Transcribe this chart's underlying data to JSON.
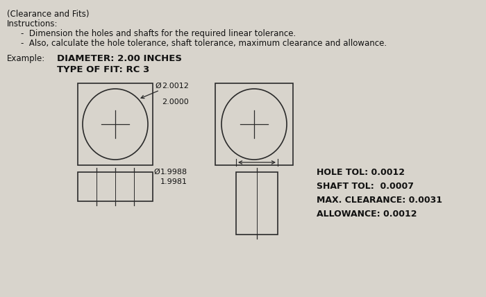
{
  "bg_color": "#d8d4cc",
  "title_line1": "(Clearance and Fits)",
  "title_line2": "Instructions:",
  "bullet1": "Dimension the holes and shafts for the required linear tolerance.",
  "bullet2": "Also, calculate the hole tolerance, shaft tolerance, maximum clearance and allowance.",
  "example_label": "Example:",
  "diameter_text": "DIAMETER: 2.00 INCHES",
  "fit_text": "TYPE OF FIT: RC 3",
  "hole_upper": "2.0012",
  "hole_lower": "2.0000",
  "shaft_upper": "1.9988",
  "shaft_lower": "1.9981",
  "hole_tol_label": "HOLE TOL:",
  "hole_tol_val": "0.0012",
  "shaft_tol_label": "SHAFT TOL:",
  "shaft_tol_val": "0.0007",
  "max_clear_label": "MAX. CLEARANCE:",
  "max_clear_val": "0.0031",
  "allowance_label": "ALLOWANCE:",
  "allowance_val": "0.0012",
  "phi_symbol": "Ø"
}
